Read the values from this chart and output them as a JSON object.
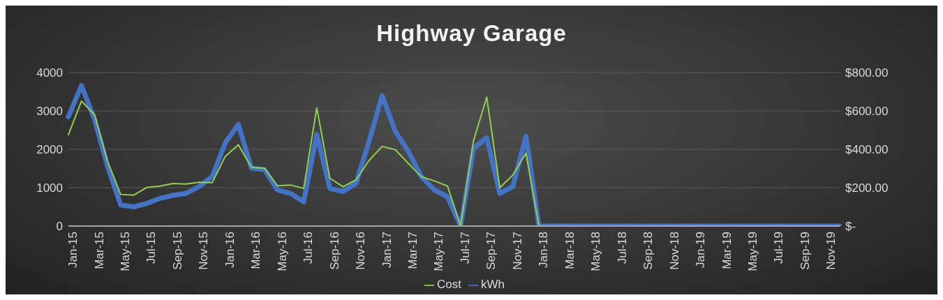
{
  "chart_data": {
    "type": "line",
    "title": "Highway Garage",
    "categories": [
      "Jan-15",
      null,
      "Mar-15",
      null,
      "May-15",
      null,
      "Jul-15",
      null,
      "Sep-15",
      null,
      "Nov-15",
      null,
      "Jan-16",
      null,
      "Mar-16",
      null,
      "May-16",
      null,
      "Jul-16",
      null,
      "Sep-16",
      null,
      "Nov-16",
      null,
      "Jan-17",
      null,
      "Mar-17",
      null,
      "May-17",
      null,
      "Jul-17",
      null,
      "Sep-17",
      null,
      "Nov-17",
      null,
      "Jan-18",
      null,
      "Mar-18",
      null,
      "May-18",
      null,
      "Jul-18",
      null,
      "Sep-18",
      null,
      "Nov-18",
      null,
      "Jan-19",
      null,
      "Mar-19",
      null,
      "May-19",
      null,
      "Jul-19",
      null,
      "Sep-19",
      null,
      "Nov-19",
      null
    ],
    "series": [
      {
        "name": "kWh",
        "color": "#4472c4",
        "values": [
          2850,
          3660,
          2780,
          1550,
          550,
          500,
          590,
          720,
          800,
          850,
          1030,
          1290,
          2170,
          2650,
          1510,
          1470,
          940,
          850,
          630,
          2390,
          980,
          900,
          1110,
          2210,
          3400,
          2470,
          1950,
          1290,
          940,
          760,
          0,
          2030,
          2300,
          850,
          1030,
          2340,
          0,
          0,
          0,
          0,
          0,
          0,
          0,
          0,
          0,
          0,
          0,
          0,
          0,
          0,
          0,
          0,
          0,
          0,
          0,
          0,
          0,
          0,
          0,
          0
        ]
      },
      {
        "name": "Cost",
        "color": "#92d050",
        "axis": "y2",
        "values": [
          476,
          651,
          581,
          336,
          165,
          161,
          201,
          208,
          222,
          219,
          228,
          226,
          363,
          424,
          306,
          301,
          210,
          214,
          196,
          616,
          249,
          205,
          240,
          342,
          415,
          398,
          327,
          257,
          235,
          208,
          0,
          447,
          672,
          200,
          266,
          380,
          0,
          0,
          0,
          0,
          0,
          0,
          0,
          0,
          0,
          0,
          0,
          0,
          0,
          0,
          0,
          0,
          0,
          0,
          0,
          0,
          0,
          0,
          0,
          0
        ]
      }
    ],
    "ylim": [
      0,
      4000
    ],
    "yticks": [
      0,
      1000,
      2000,
      3000,
      4000
    ],
    "y2lim": [
      0,
      800
    ],
    "y2ticks": [
      {
        "value": 0,
        "label": "$-"
      },
      {
        "value": 200,
        "label": "$200.00"
      },
      {
        "value": 400,
        "label": "$400.00"
      },
      {
        "value": 600,
        "label": "$600.00"
      },
      {
        "value": 800,
        "label": "$800.00"
      }
    ],
    "grid": "y",
    "legend": "bottom",
    "marker": "none",
    "line_style": "solid"
  }
}
